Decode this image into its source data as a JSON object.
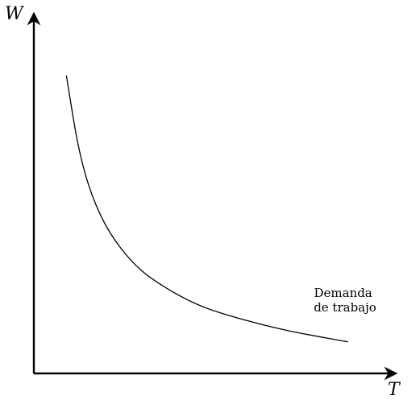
{
  "chart_data": {
    "type": "line",
    "title": "",
    "xlabel": "T",
    "ylabel": "W",
    "grid": false,
    "legend": "none",
    "xlim": [
      0,
      10
    ],
    "ylim": [
      0,
      10
    ],
    "show_tick_labels": false,
    "series": [
      {
        "name": "Demanda de trabajo",
        "label_lines": [
          "Demanda",
          "de trabajo"
        ],
        "color": "#000000",
        "x": [
          0.9,
          1.2,
          1.5,
          1.9,
          2.4,
          3.0,
          3.8,
          4.7,
          5.8,
          7.0,
          8.3,
          8.7
        ],
        "y": [
          8.3,
          6.5,
          5.3,
          4.3,
          3.5,
          2.85,
          2.3,
          1.85,
          1.5,
          1.2,
          0.95,
          0.88
        ]
      }
    ]
  }
}
